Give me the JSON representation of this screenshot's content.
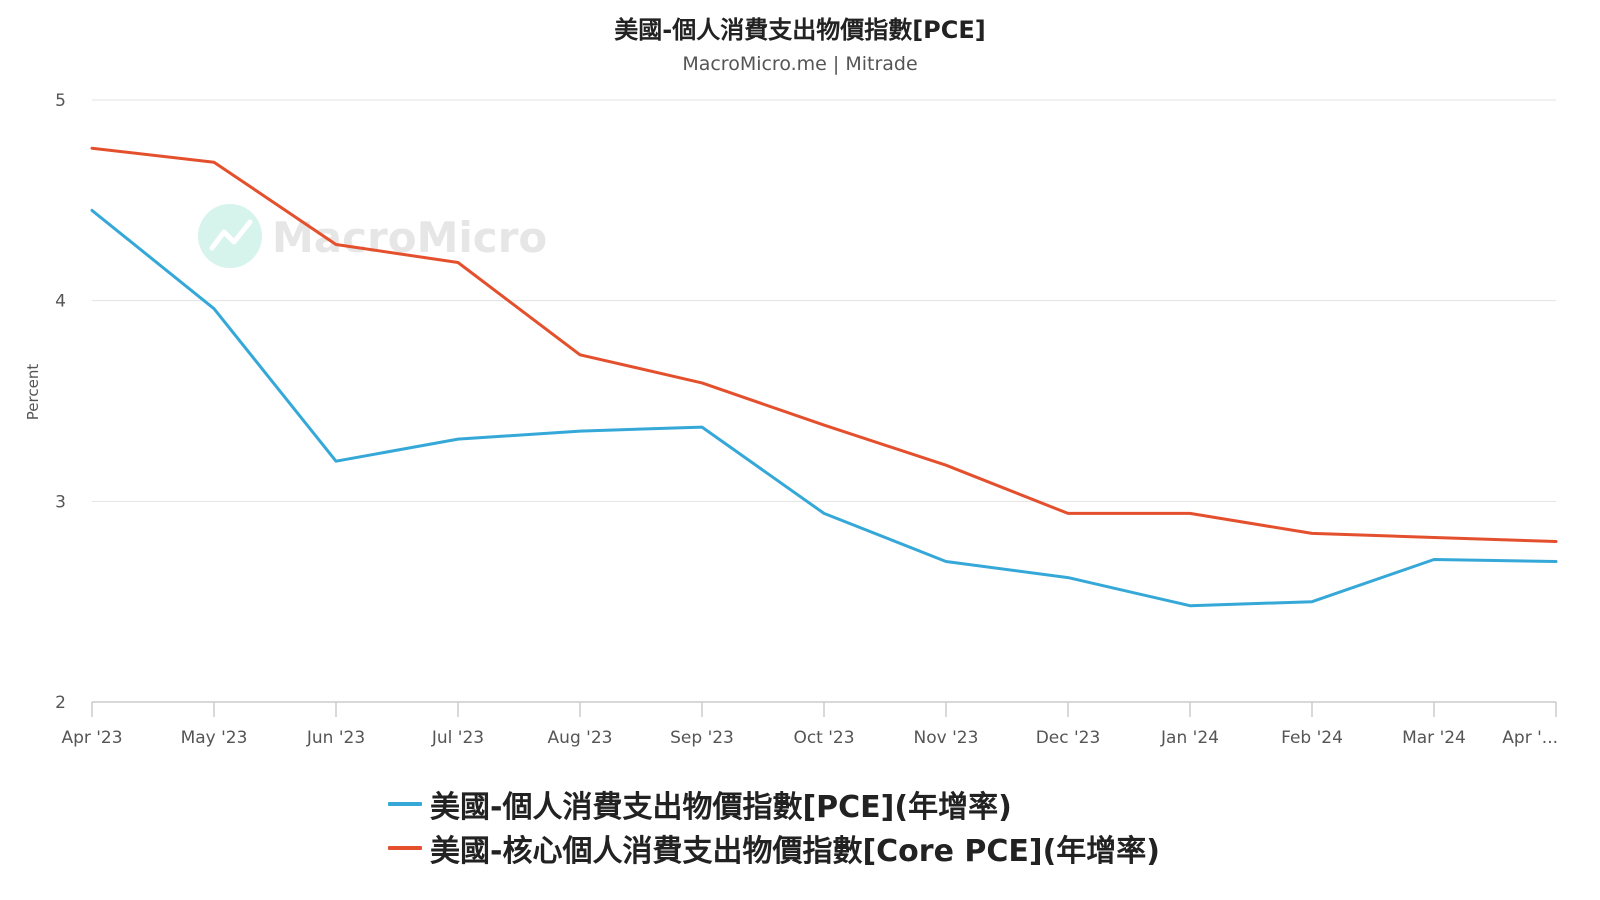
{
  "title": "美國-個人消費支出物價指數[PCE]",
  "subtitle": "MacroMicro.me | Mitrade",
  "watermark": "MacroMicro",
  "chart_data": {
    "type": "line",
    "title": "美國-個人消費支出物價指數[PCE]",
    "subtitle": "MacroMicro.me | Mitrade",
    "xlabel": "",
    "ylabel": "Percent",
    "ylim": [
      2,
      5
    ],
    "yticks": [
      2,
      3,
      4,
      5
    ],
    "grid": true,
    "legend_position": "bottom",
    "categories": [
      "Apr '23",
      "May '23",
      "Jun '23",
      "Jul '23",
      "Aug '23",
      "Sep '23",
      "Oct '23",
      "Nov '23",
      "Dec '23",
      "Jan '24",
      "Feb '24",
      "Mar '24",
      "Apr '..."
    ],
    "series": [
      {
        "name": "美國-個人消費支出物價指數[PCE](年增率)",
        "color": "#35a8d8",
        "values": [
          4.45,
          3.96,
          3.2,
          3.31,
          3.35,
          3.37,
          2.94,
          2.7,
          2.62,
          2.48,
          2.5,
          2.71,
          2.7
        ]
      },
      {
        "name": "美國-核心個人消費支出物價指數[Core PCE](年增率)",
        "color": "#e4502d",
        "values": [
          4.76,
          4.69,
          4.28,
          4.19,
          3.73,
          3.59,
          3.38,
          3.18,
          2.94,
          2.94,
          2.84,
          2.82,
          2.8
        ]
      }
    ]
  }
}
